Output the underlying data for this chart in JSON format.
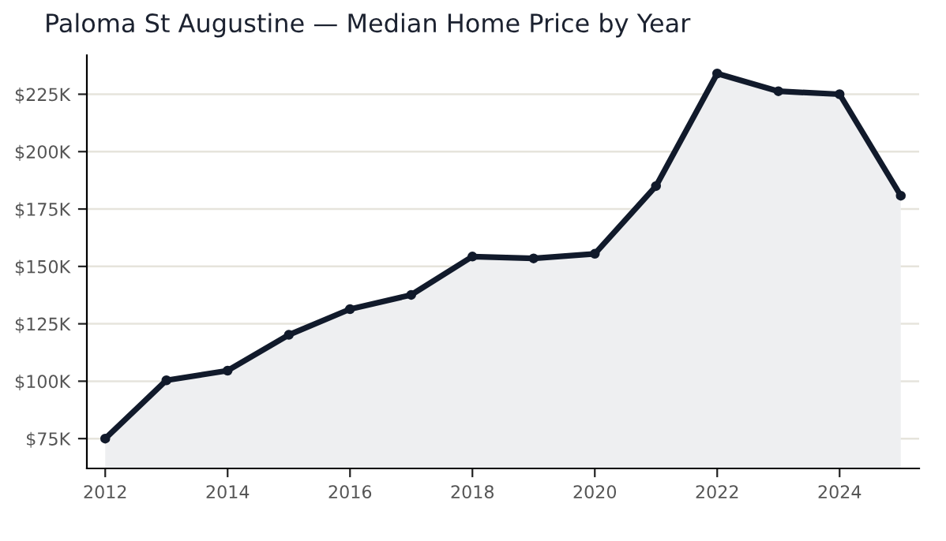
{
  "chart_data": {
    "type": "area",
    "title": "Paloma St Augustine — Median Home Price by Year",
    "x": [
      2012,
      2013,
      2014,
      2015,
      2016,
      2017,
      2018,
      2019,
      2020,
      2021,
      2022,
      2023,
      2024,
      2025
    ],
    "series": [
      {
        "color": "#111a2b",
        "values": [
          75,
          100.4,
          104.6,
          120.2,
          131.4,
          137.6,
          154.3,
          153.5,
          155.5,
          185,
          234,
          226.3,
          225,
          180.8
        ]
      }
    ],
    "xlim": [
      2011.7,
      2025.3
    ],
    "xticks": [
      2012,
      2014,
      2016,
      2018,
      2020,
      2022,
      2024
    ],
    "ylim": [
      62,
      242
    ],
    "yticks": [
      {
        "value": 75,
        "label": "$75K"
      },
      {
        "value": 100,
        "label": "$100K"
      },
      {
        "value": 125,
        "label": "$125K"
      },
      {
        "value": 150,
        "label": "$150K"
      },
      {
        "value": 175,
        "label": "$175K"
      },
      {
        "value": 200,
        "label": "$200K"
      },
      {
        "value": 225,
        "label": "$225K"
      }
    ],
    "grid": "y",
    "marker": "circle",
    "line_style": "solid"
  }
}
